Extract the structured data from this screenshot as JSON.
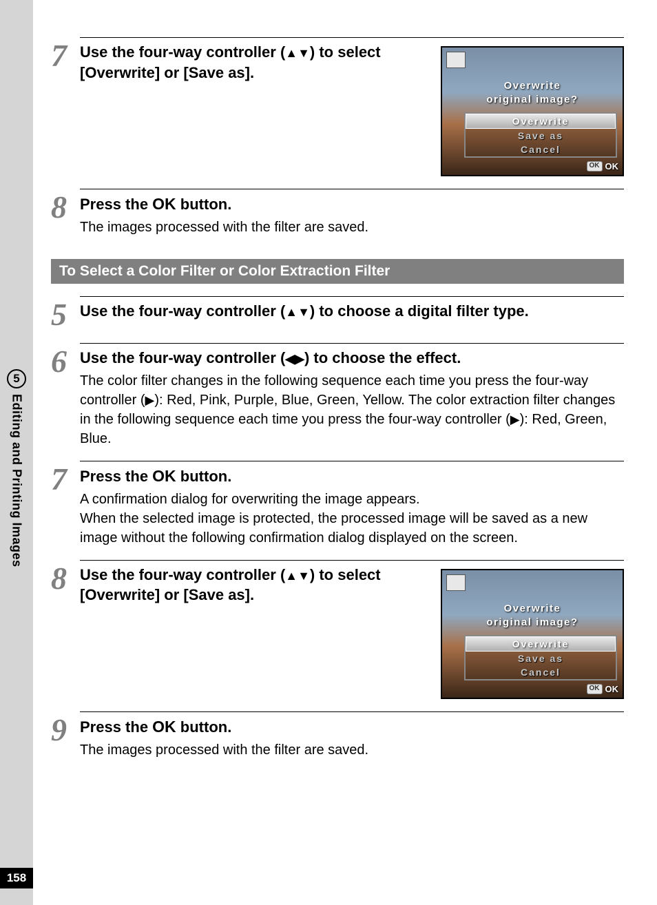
{
  "page_number": "158",
  "side_tab": {
    "chapter": "5",
    "title": "Editing and Printing Images"
  },
  "section_a": {
    "steps": [
      {
        "num": "7",
        "title_parts": [
          "Use the four-way controller (",
          "▲▼",
          ") to select [Overwrite] or [Save as]."
        ],
        "has_shot": true
      },
      {
        "num": "8",
        "title_parts": [
          "Press the ",
          "OK",
          " button."
        ],
        "desc": "The images processed with the filter are saved."
      }
    ]
  },
  "subheader": "To Select a Color Filter or Color Extraction Filter",
  "section_b": {
    "steps": [
      {
        "num": "5",
        "title_parts": [
          "Use the four-way controller (",
          "▲▼",
          ") to choose a digital filter type."
        ]
      },
      {
        "num": "6",
        "title_parts": [
          "Use the four-way controller (",
          "◀▶",
          ") to choose the effect."
        ],
        "desc_parts": [
          "The color filter changes in the following sequence each time you press the four-way controller (",
          "▶",
          "): Red, Pink, Purple, Blue, Green, Yellow. The color extraction filter changes in the following sequence each time you press the four-way controller (",
          "▶",
          "): Red, Green, Blue."
        ]
      },
      {
        "num": "7",
        "title_parts": [
          "Press the ",
          "OK",
          " button."
        ],
        "desc": "A confirmation dialog for overwriting the image appears.\nWhen the selected image is protected, the processed image will be saved as a new image without the following confirmation dialog displayed on the screen."
      },
      {
        "num": "8",
        "title_parts": [
          "Use the four-way controller (",
          "▲▼",
          ") to select [Overwrite] or [Save as]."
        ],
        "has_shot": true
      },
      {
        "num": "9",
        "title_parts": [
          "Press the ",
          "OK",
          " button."
        ],
        "desc": "The images processed with the filter are saved."
      }
    ]
  },
  "screenshot": {
    "prompt_line1": "Overwrite",
    "prompt_line2": "original image?",
    "options": [
      "Overwrite",
      "Save as",
      "Cancel"
    ],
    "ok_badge": "OK",
    "ok_label": "OK"
  }
}
